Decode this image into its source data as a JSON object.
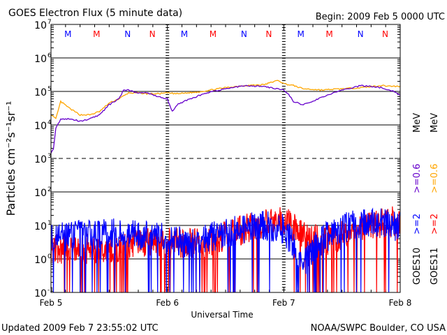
{
  "chart_data": {
    "type": "line",
    "title": "GOES Electron Flux (5 minute data)",
    "begin": "Begin: 2009 Feb 5 0000 UTC",
    "xlabel": "Universal Time",
    "ylabel": "Particles cm⁻²s⁻¹sr⁻¹",
    "yscale": "log",
    "ylim": [
      0.1,
      10000000
    ],
    "xlim_hours": [
      0,
      72
    ],
    "x_tick_labels": [
      "Feb 5",
      "Feb 6",
      "Feb 7",
      "Feb 8"
    ],
    "y_tick_exponents": [
      "7",
      "6",
      "5",
      "4",
      "3",
      "2",
      "1",
      "0",
      "-1"
    ],
    "markers": [
      {
        "label": "M",
        "color": "#0000ff",
        "hour": 3.5
      },
      {
        "label": "M",
        "color": "#ff0000",
        "hour": 9.4
      },
      {
        "label": "N",
        "color": "#0000ff",
        "hour": 15.8
      },
      {
        "label": "N",
        "color": "#ff0000",
        "hour": 20.9
      }
    ],
    "series": [
      {
        "name": "GOES11 >=0.6 MeV",
        "color": "#ffa500",
        "hours": [
          0,
          1,
          2,
          4,
          6,
          8,
          10,
          12,
          14,
          16,
          18,
          20,
          22,
          24,
          26,
          28,
          30,
          32,
          36,
          40,
          44,
          46,
          47,
          48,
          50,
          52,
          56,
          60,
          64,
          68,
          72
        ],
        "values": [
          20000,
          15000,
          50000,
          30000,
          20000,
          20000,
          25000,
          45000,
          60000,
          90000,
          90000,
          85000,
          85000,
          90000,
          85000,
          90000,
          95000,
          105000,
          130000,
          150000,
          160000,
          200000,
          210000,
          170000,
          150000,
          120000,
          110000,
          120000,
          130000,
          150000,
          140000
        ]
      },
      {
        "name": "GOES10 >=0.6 MeV",
        "color": "#6600cc",
        "hours": [
          0,
          0.5,
          1,
          2,
          4,
          6,
          8,
          10,
          12,
          14,
          15,
          16,
          18,
          20,
          22,
          24,
          25,
          26,
          28,
          30,
          32,
          36,
          40,
          44,
          48,
          49,
          50,
          52,
          54,
          56,
          60,
          64,
          68,
          70,
          72
        ],
        "values": [
          1500,
          2000,
          8000,
          15000,
          15000,
          13000,
          15000,
          20000,
          40000,
          60000,
          110000,
          110000,
          90000,
          90000,
          70000,
          60000,
          25000,
          40000,
          55000,
          70000,
          90000,
          120000,
          150000,
          140000,
          110000,
          80000,
          50000,
          40000,
          50000,
          70000,
          110000,
          150000,
          130000,
          110000,
          80000
        ]
      },
      {
        "name": "GOES10 >=2 MeV",
        "color": "#0000ff",
        "hours": [
          0,
          4,
          8,
          12,
          16,
          20,
          24,
          28,
          32,
          36,
          40,
          44,
          48,
          52,
          56,
          60,
          64,
          68,
          72
        ],
        "values": [
          4,
          5,
          5,
          6,
          6,
          5,
          4,
          3,
          4,
          6,
          8,
          10,
          8,
          0.8,
          4,
          8,
          12,
          12,
          9
        ]
      },
      {
        "name": "GOES11 >=2 MeV",
        "color": "#ff0000",
        "hours": [
          0,
          4,
          8,
          12,
          16,
          20,
          24,
          28,
          32,
          36,
          40,
          44,
          48,
          52,
          56,
          60,
          64,
          68,
          72
        ],
        "values": [
          2,
          2,
          2,
          2,
          2.5,
          3,
          3,
          3,
          3,
          5,
          8,
          12,
          15,
          6,
          3,
          5,
          9,
          12,
          14
        ]
      }
    ],
    "legend_left": [
      "GOES10",
      ">=2",
      ">=0.6",
      "MeV"
    ],
    "legend_right": [
      "GOES11",
      ">=2",
      ">=0.6",
      "MeV"
    ]
  },
  "footer": {
    "updated": "Updated 2009 Feb  7 23:55:02 UTC",
    "source": "NOAA/SWPC Boulder, CO USA"
  }
}
